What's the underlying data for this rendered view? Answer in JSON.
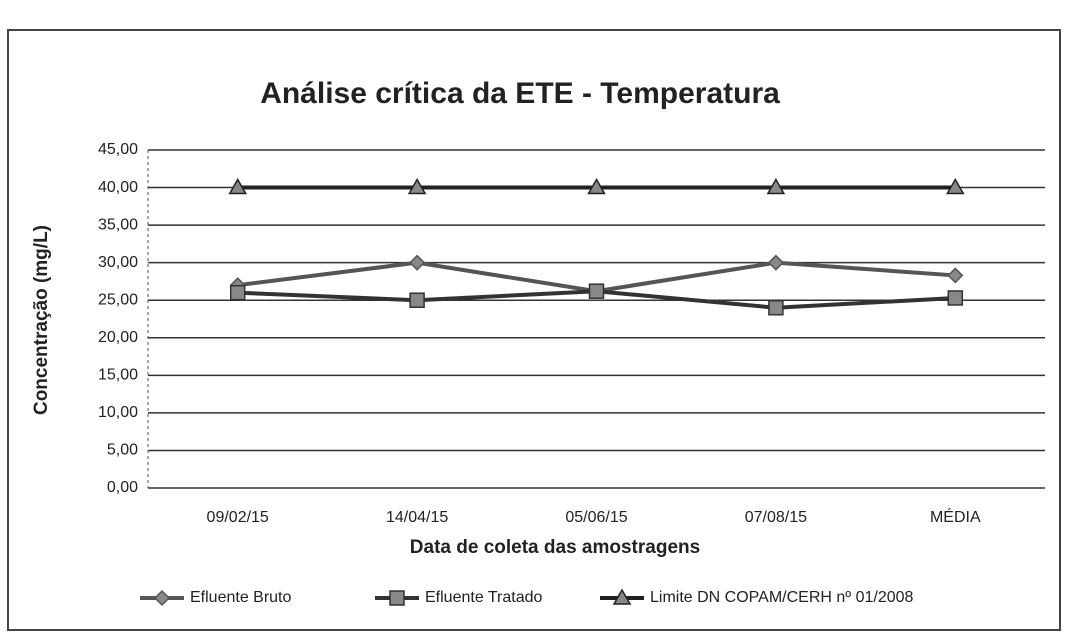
{
  "chart_data": {
    "type": "line",
    "title": "Análise crítica da ETE - Temperatura",
    "x_label": "Data de coleta das amostragens",
    "y_label": "Concentração (mg/L)",
    "categories": [
      "09/02/15",
      "14/04/15",
      "05/06/15",
      "07/08/15",
      "MÉDIA"
    ],
    "series": [
      {
        "name": "Efluente Bruto",
        "color": "#555555",
        "marker": "diamond",
        "values": [
          27,
          30,
          26.2,
          30,
          28.3
        ]
      },
      {
        "name": "Efluente Tratado",
        "color": "#333333",
        "marker": "square",
        "values": [
          26,
          25,
          26.2,
          24,
          25.3
        ]
      },
      {
        "name": "Limite DN COPAM/CERH nº 01/2008",
        "color": "#222222",
        "marker": "triangle",
        "values": [
          40,
          40,
          40,
          40,
          40
        ]
      }
    ],
    "ylim": [
      0,
      45
    ],
    "yticks": [
      {
        "value": 0,
        "label": "0,00"
      },
      {
        "value": 5,
        "label": "5,00"
      },
      {
        "value": 10,
        "label": "10,00"
      },
      {
        "value": 15,
        "label": "15,00"
      },
      {
        "value": 20,
        "label": "20,00"
      },
      {
        "value": 25,
        "label": "25,00"
      },
      {
        "value": 30,
        "label": "30,00"
      },
      {
        "value": 35,
        "label": "35,00"
      },
      {
        "value": 40,
        "label": "40,00"
      },
      {
        "value": 45,
        "label": "45,00"
      }
    ],
    "grid": true,
    "legend": "bottom"
  }
}
